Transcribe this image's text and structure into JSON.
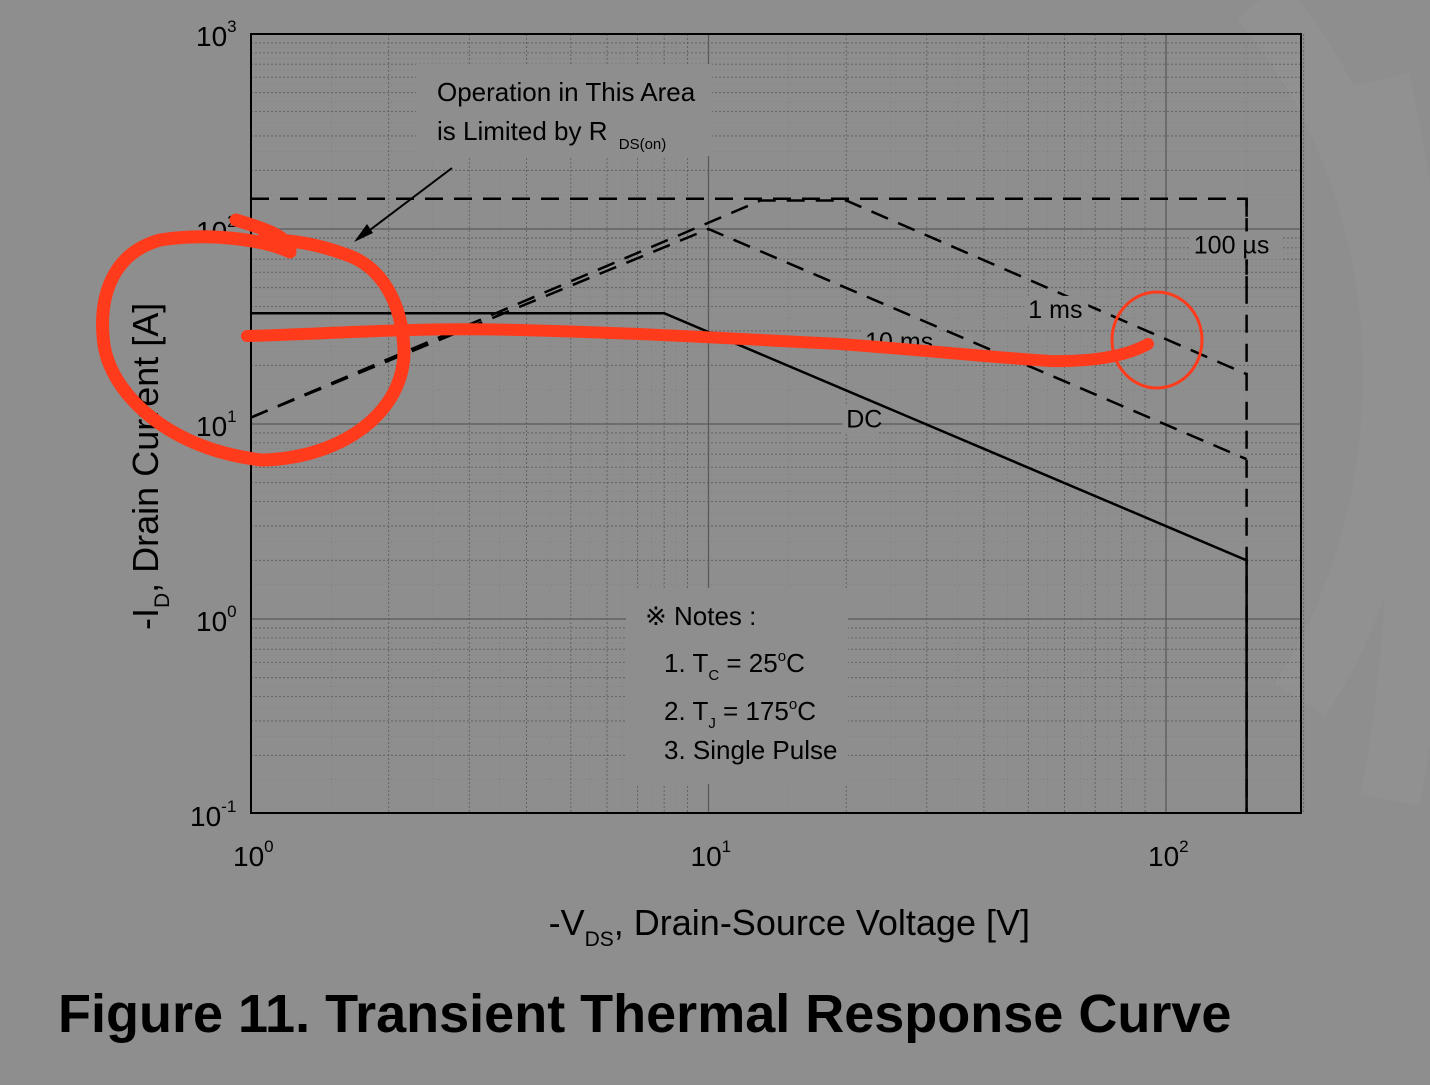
{
  "figure": {
    "caption": "Figure 11. Transient Thermal Response Curve"
  },
  "chart_data": {
    "type": "line",
    "title": "",
    "xlabel": "-V_DS, Drain-Source Voltage [V]",
    "ylabel": "-I_D, Drain Current [A]",
    "x_scale": "log",
    "y_scale": "log",
    "xlim": [
      1,
      230
    ],
    "ylim": [
      0.1,
      1000
    ],
    "grid": true,
    "x_ticks": [
      {
        "value": 1,
        "base": "10",
        "exp": "0"
      },
      {
        "value": 10,
        "base": "10",
        "exp": "1"
      },
      {
        "value": 100,
        "base": "10",
        "exp": "2"
      }
    ],
    "y_ticks": [
      {
        "value": 0.1,
        "base": "10",
        "exp": "-1"
      },
      {
        "value": 1,
        "base": "10",
        "exp": "0"
      },
      {
        "value": 10,
        "base": "10",
        "exp": "1"
      },
      {
        "value": 100,
        "base": "10",
        "exp": "2"
      },
      {
        "value": 1000,
        "base": "10",
        "exp": "3"
      }
    ],
    "series": [
      {
        "name": "DC",
        "style": "solid",
        "points": [
          [
            1,
            37
          ],
          [
            8,
            37
          ],
          [
            150,
            2.0
          ],
          [
            150,
            0.1
          ]
        ]
      },
      {
        "name": "10 ms",
        "style": "dashed",
        "points": [
          [
            1,
            10.8
          ],
          [
            10,
            100
          ],
          [
            150,
            6.6
          ]
        ]
      },
      {
        "name": "1 ms",
        "style": "dashed",
        "points": [
          [
            1,
            10.8
          ],
          [
            13,
            140
          ],
          [
            20,
            140
          ],
          [
            150,
            18
          ]
        ]
      },
      {
        "name": "100 µs",
        "style": "dashed",
        "points": [
          [
            1,
            143
          ],
          [
            150,
            143
          ],
          [
            150,
            50
          ]
        ]
      },
      {
        "name": "",
        "style": "dashed",
        "points": [
          [
            150,
            143
          ],
          [
            150,
            0.1
          ]
        ]
      }
    ],
    "curve_labels": [
      {
        "series": "DC",
        "text": "DC",
        "x": 20,
        "y": 9.6
      },
      {
        "series": "10 ms",
        "text": "10 ms",
        "x": 22,
        "y": 24
      },
      {
        "series": "1 ms",
        "text": "1 ms",
        "x": 50,
        "y": 35
      },
      {
        "series": "100 µs",
        "text": "100 µs",
        "x": 115,
        "y": 75
      }
    ],
    "annotations": {
      "limit_box": {
        "line1": "Operation in This Area",
        "line2_main": "is Limited by R",
        "line2_sub": "DS(on)"
      },
      "notes": {
        "header": "※ Notes :",
        "note1": {
          "pre": "1. T",
          "sub": "C",
          "post": " = 25",
          "deg": "o",
          "unit": "C"
        },
        "note2": {
          "pre": "2. T",
          "sub": "J",
          "post": " = 175",
          "deg": "o",
          "unit": "C"
        },
        "note3": "3. Single Pulse"
      }
    },
    "axis_text": {
      "y_pre": "-I",
      "y_sub": "D",
      "y_post": ", Drain Current [A]",
      "x_pre": "-V",
      "x_sub": "DS",
      "x_post": ", Drain-Source Voltage [V]"
    },
    "markup_color": "#ff3b1c",
    "grid_color": "#5a5a5a"
  }
}
